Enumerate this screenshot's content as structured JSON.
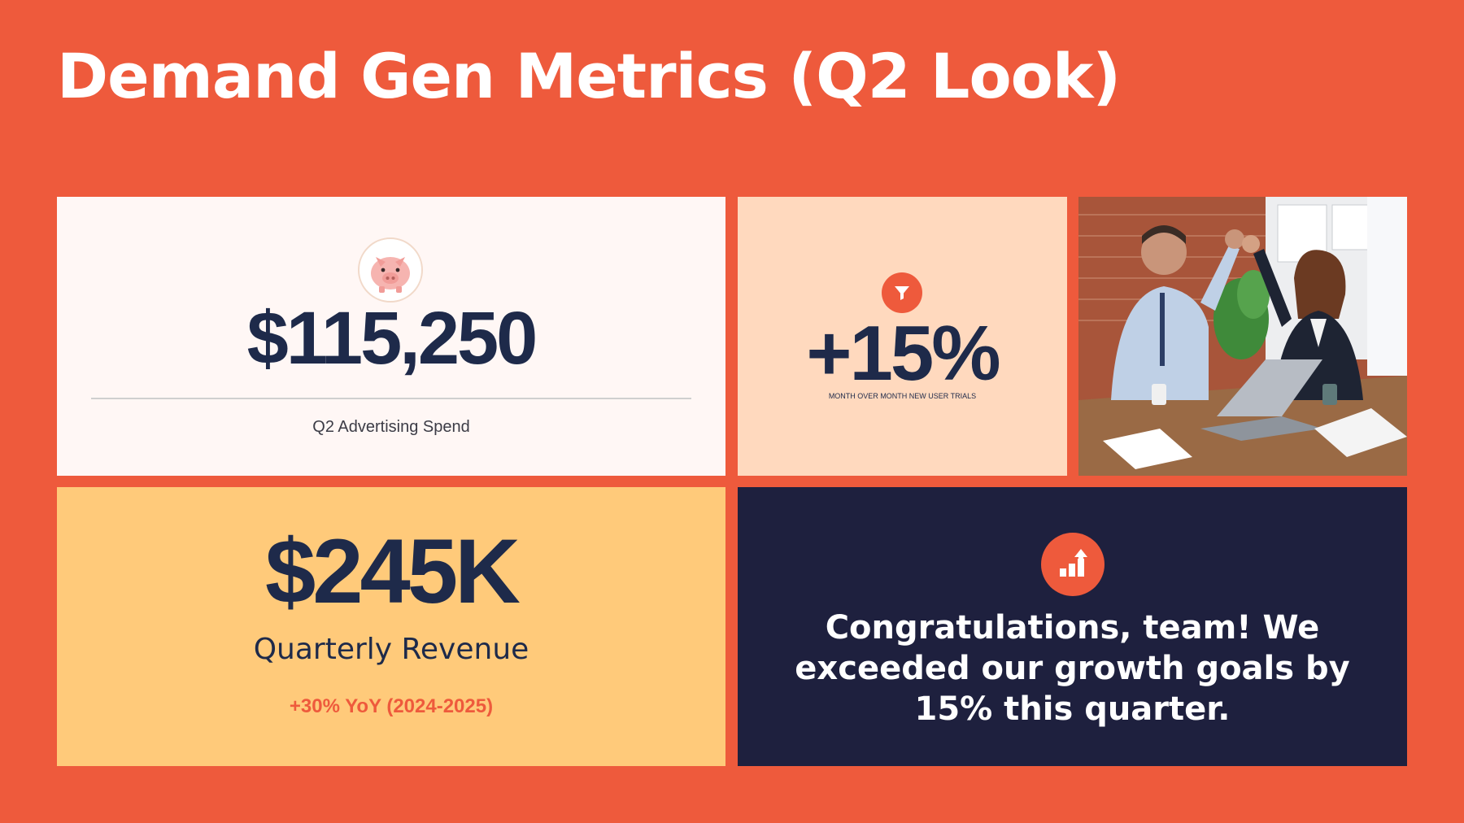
{
  "slide": {
    "title": "Demand Gen Metrics (Q2 Look)",
    "background_color": "#EE5A3C"
  },
  "cards": {
    "spend": {
      "icon": "piggy-bank-icon",
      "value": "$115,250",
      "label": "Q2 Advertising Spend"
    },
    "trials": {
      "icon": "funnel-icon",
      "value": "+15%",
      "label": "MONTH OVER MONTH NEW USER TRIALS"
    },
    "photo": {
      "subject": "team-celebration-photo"
    },
    "revenue": {
      "value": "$245K",
      "label": "Quarterly Revenue",
      "subtext": "+30% YoY (2024-2025)"
    },
    "congrats": {
      "icon": "growth-chart-icon",
      "message": "Congratulations, team! We exceeded our growth goals by 15% this quarter."
    }
  },
  "colors": {
    "navy": "#1E2A4A",
    "dark_navy": "#1E203E",
    "accent_orange": "#EE5A3C",
    "peach": "#FFD9BE",
    "yellow": "#FFCA7A",
    "off_white": "#FFF7F5"
  }
}
